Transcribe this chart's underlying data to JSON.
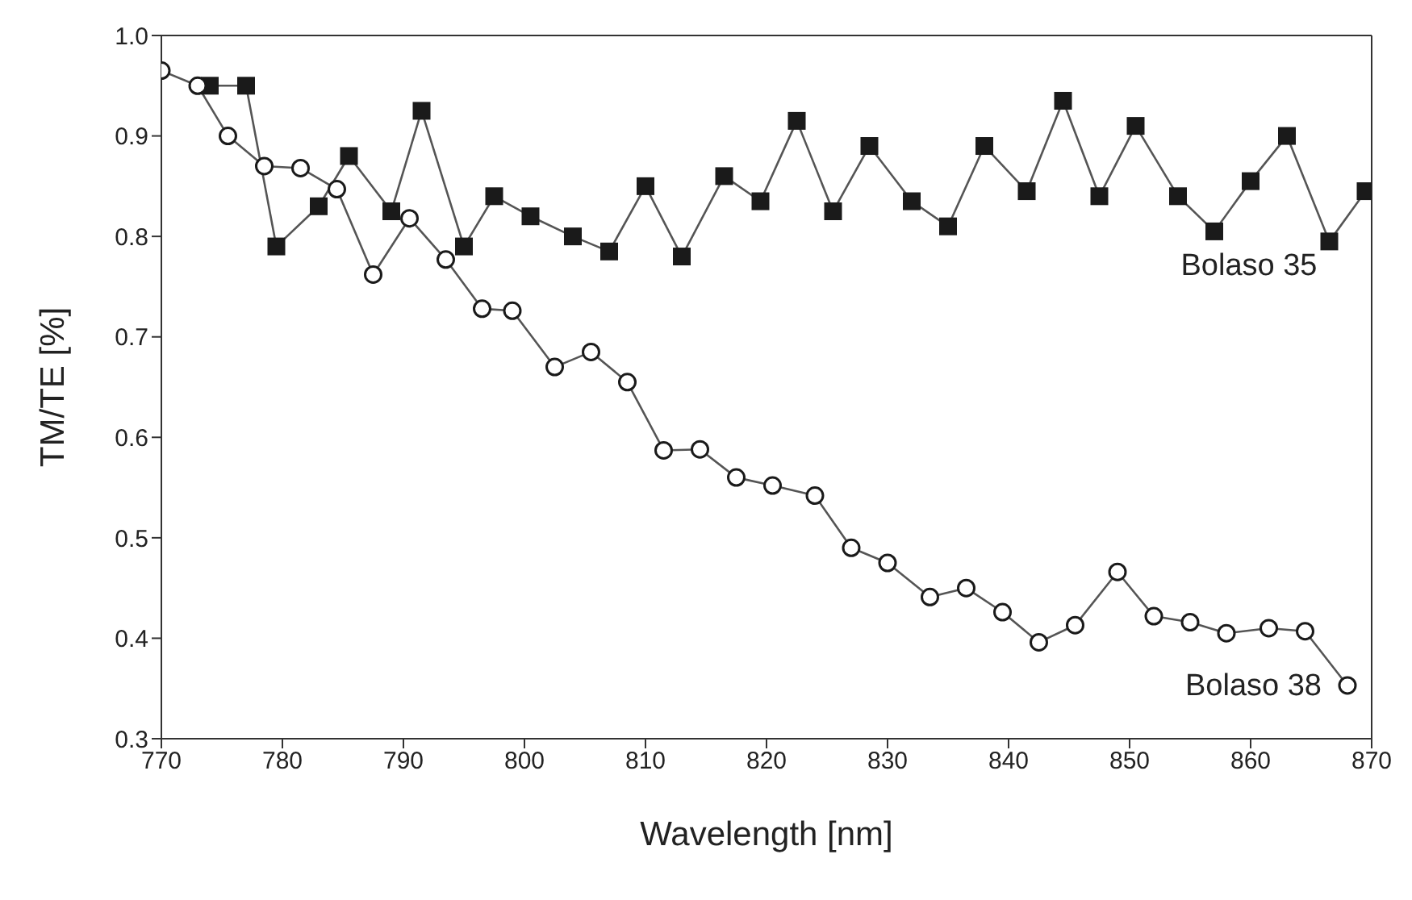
{
  "chart_data": {
    "type": "line",
    "xlabel": "Wavelength [nm]",
    "ylabel": "TM/TE [%]",
    "xlim": [
      770,
      870
    ],
    "xticks": [
      770,
      780,
      790,
      800,
      810,
      820,
      830,
      840,
      850,
      860,
      870
    ],
    "ylim": [
      0.3,
      1.0
    ],
    "yticks": [
      {
        "value": 0.3,
        "label": "0.3"
      },
      {
        "value": 0.4,
        "label": "0.4"
      },
      {
        "value": 0.5,
        "label": "0.5"
      },
      {
        "value": 0.6,
        "label": "0.6"
      },
      {
        "value": 0.7,
        "label": "0.7"
      },
      {
        "value": 0.8,
        "label": "0.8"
      },
      {
        "value": 0.9,
        "label": "0.9"
      },
      {
        "value": 1.0,
        "label": "1.0"
      }
    ],
    "legend": false,
    "series": [
      {
        "name": "Bolaso 35",
        "color": "#1a1a1a",
        "marker": "square",
        "x": [
          774,
          777,
          779.5,
          783,
          785.5,
          789,
          791.5,
          795,
          797.5,
          800.5,
          804,
          807,
          810,
          813,
          816.5,
          819.5,
          822.5,
          825.5,
          828.5,
          832,
          835,
          838,
          841.5,
          844.5,
          847.5,
          850.5,
          854,
          857,
          860,
          863,
          866.5,
          869.5
        ],
        "values": [
          0.95,
          0.95,
          0.79,
          0.83,
          0.88,
          0.825,
          0.925,
          0.79,
          0.84,
          0.82,
          0.8,
          0.785,
          0.85,
          0.78,
          0.86,
          0.835,
          0.915,
          0.825,
          0.89,
          0.835,
          0.81,
          0.89,
          0.845,
          0.935,
          0.84,
          0.91,
          0.84,
          0.805,
          0.855,
          0.9,
          0.795,
          0.845
        ]
      },
      {
        "name": "Bolaso 38",
        "color": "#1a1a1a",
        "marker": "circle",
        "x": [
          770,
          773,
          775.5,
          778.5,
          781.5,
          784.5,
          787.5,
          790.5,
          793.5,
          796.5,
          799,
          802.5,
          805.5,
          808.5,
          811.5,
          814.5,
          817.5,
          820.5,
          824,
          827,
          830,
          833.5,
          836.5,
          839.5,
          842.5,
          845.5,
          849,
          852,
          855,
          858,
          861.5,
          864.5,
          868
        ],
        "values": [
          0.965,
          0.95,
          0.9,
          0.87,
          0.868,
          0.847,
          0.762,
          0.818,
          0.777,
          0.728,
          0.726,
          0.67,
          0.685,
          0.655,
          0.587,
          0.588,
          0.56,
          0.552,
          0.542,
          0.49,
          0.475,
          0.441,
          0.45,
          0.426,
          0.396,
          0.413,
          0.466,
          0.422,
          0.416,
          0.405,
          0.41,
          0.407,
          0.353
        ]
      }
    ]
  }
}
